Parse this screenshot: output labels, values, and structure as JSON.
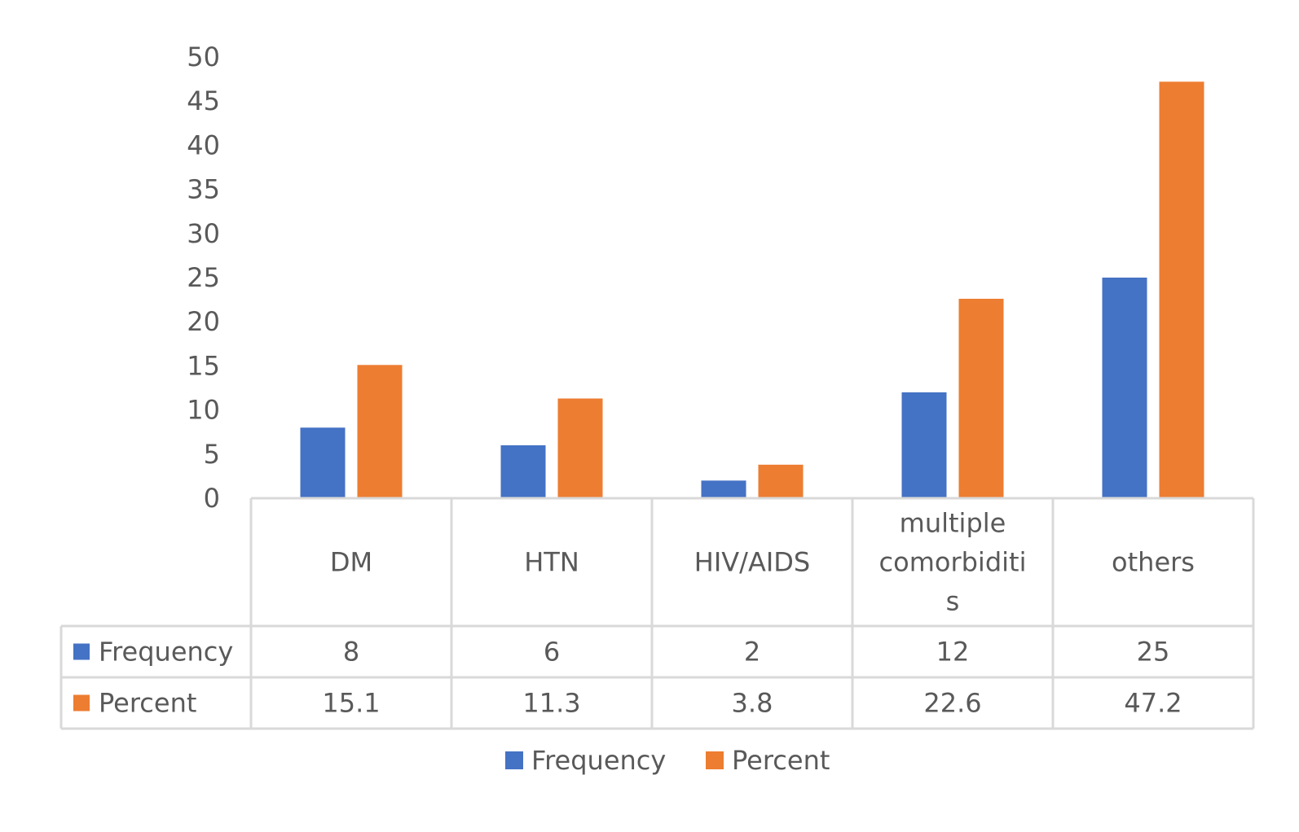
{
  "chart_data": {
    "type": "bar",
    "categories": [
      [
        "DM"
      ],
      [
        "HTN"
      ],
      [
        "HIV/AIDS"
      ],
      [
        "multiple",
        "comorbiditi",
        "s"
      ],
      [
        "others"
      ]
    ],
    "series": [
      {
        "name": "Frequency",
        "color": "#4472c4",
        "values": [
          8,
          6,
          2,
          12,
          25
        ]
      },
      {
        "name": "Percent",
        "color": "#ed7d31",
        "values": [
          15.1,
          11.3,
          3.8,
          22.6,
          47.2
        ]
      }
    ],
    "table_values": [
      [
        "8",
        "6",
        "2",
        "12",
        "25"
      ],
      [
        "15.1",
        "11.3",
        "3.8",
        "22.6",
        "47.2"
      ]
    ],
    "ylim": [
      0,
      50
    ],
    "yticks": [
      "0",
      "5",
      "10",
      "15",
      "20",
      "25",
      "30",
      "35",
      "40",
      "45",
      "50"
    ],
    "grid": false,
    "legend": {
      "position": "bottom",
      "items": [
        "Frequency",
        "Percent"
      ]
    },
    "data_table": true
  }
}
